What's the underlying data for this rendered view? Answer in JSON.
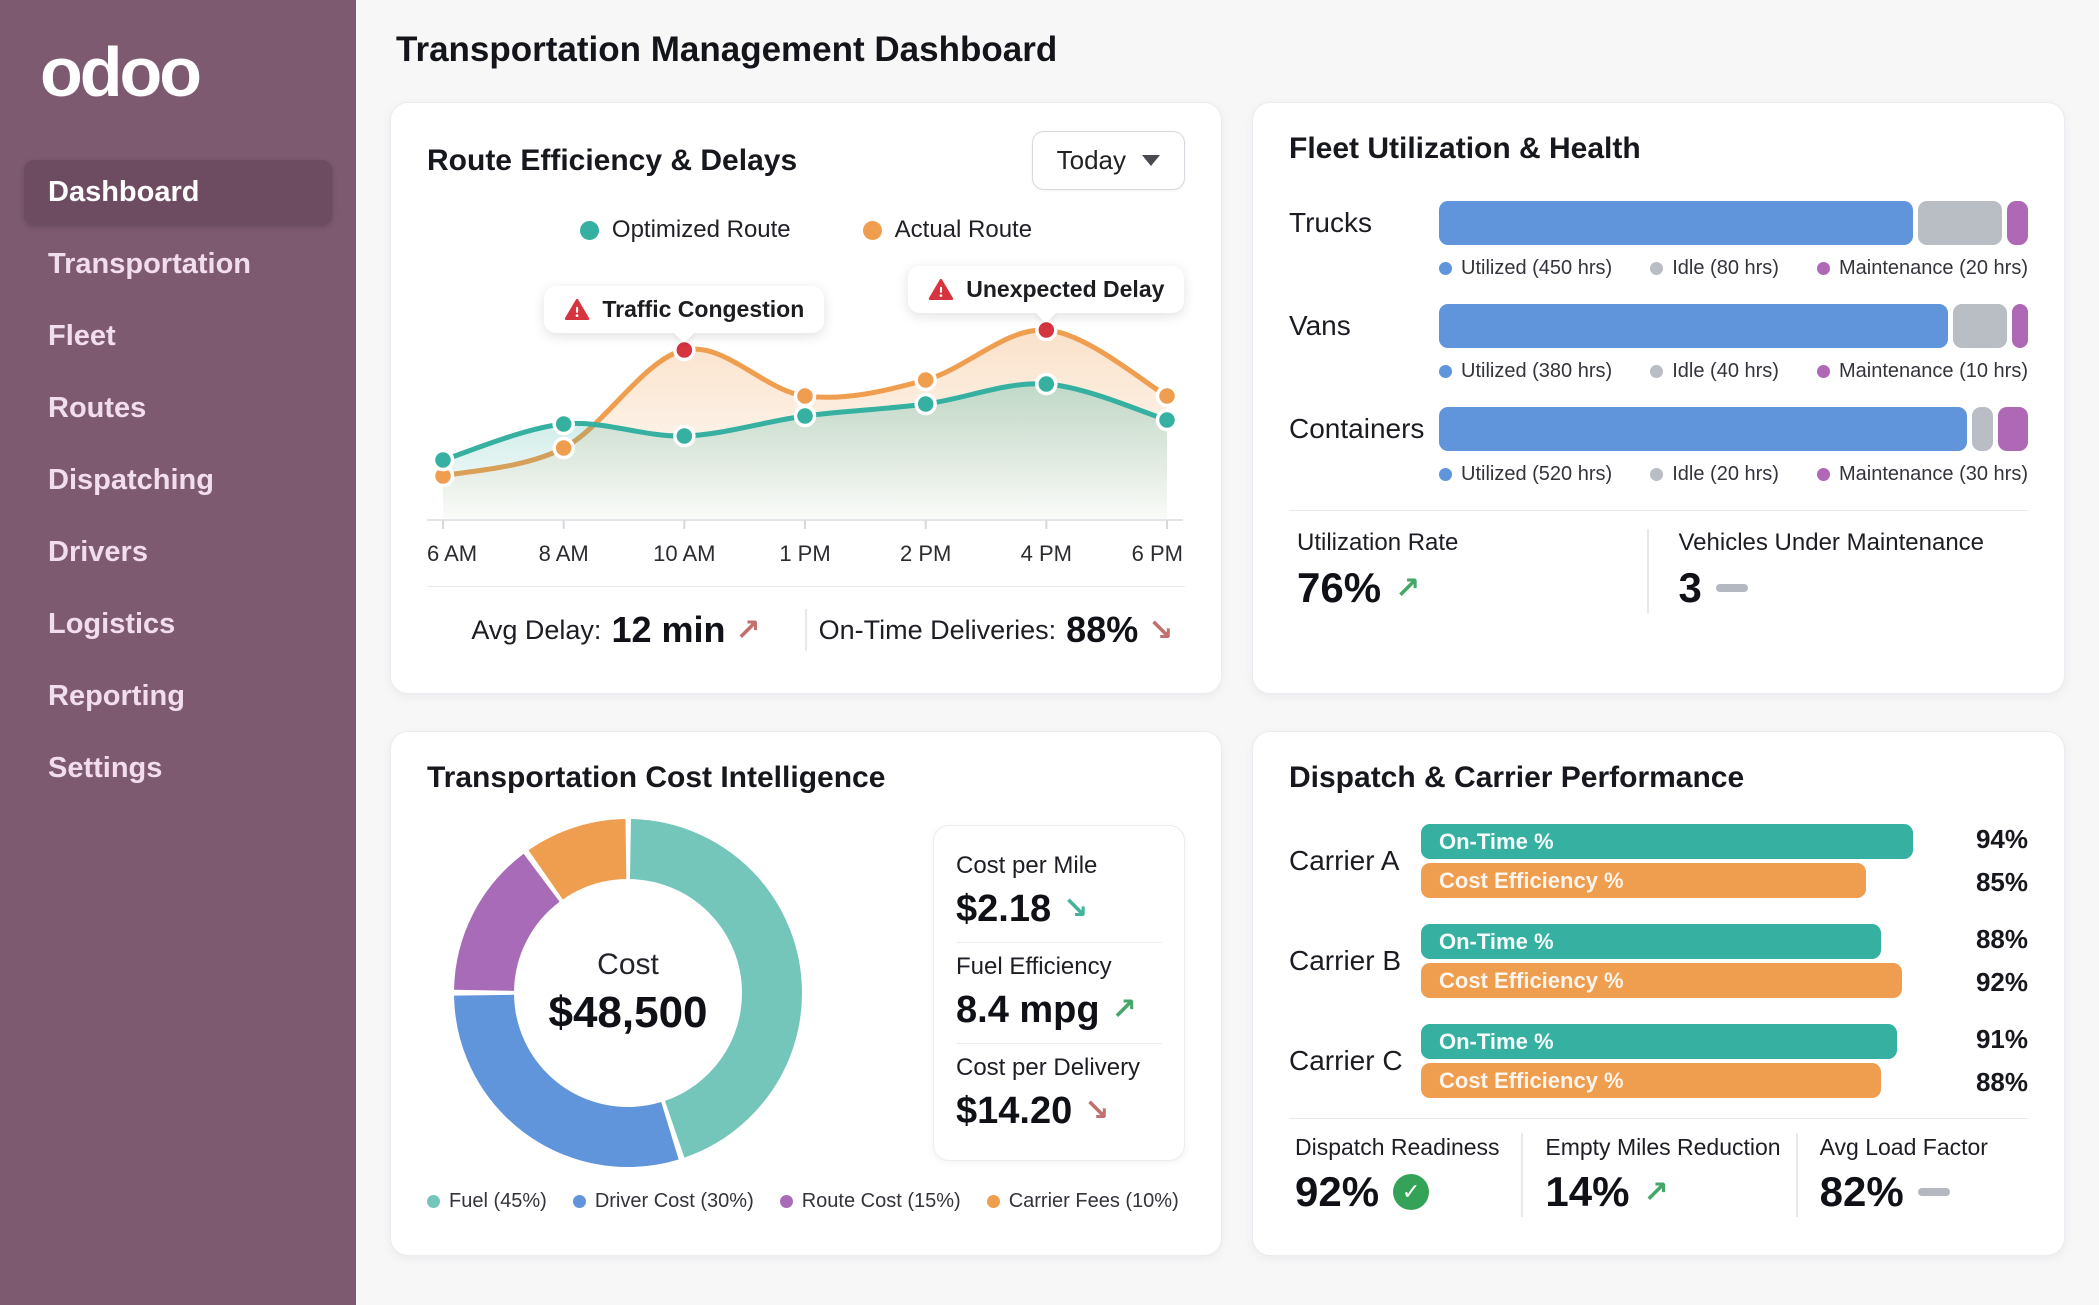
{
  "app": {
    "logo_text": "odoo"
  },
  "sidebar": {
    "items": [
      {
        "label": "Dashboard",
        "active": true
      },
      {
        "label": "Transportation",
        "active": false
      },
      {
        "label": "Fleet",
        "active": false
      },
      {
        "label": "Routes",
        "active": false
      },
      {
        "label": "Dispatching",
        "active": false
      },
      {
        "label": "Drivers",
        "active": false
      },
      {
        "label": "Logistics",
        "active": false
      },
      {
        "label": "Reporting",
        "active": false
      },
      {
        "label": "Settings",
        "active": false
      }
    ]
  },
  "header": {
    "title": "Transportation Management Dashboard"
  },
  "route_card": {
    "title": "Route Efficiency & Delays",
    "period_label": "Today",
    "footer": {
      "avg_delay_label": "Avg Delay:",
      "avg_delay_value": "12 min",
      "avg_delay_trend": "↗",
      "ontime_label": "On-Time Deliveries:",
      "ontime_value": "88%",
      "ontime_trend": "↘"
    }
  },
  "fleet_card": {
    "title": "Fleet Utilization & Health",
    "footer": {
      "left_label": "Utilization Rate",
      "left_value": "76%",
      "left_trend": "↗",
      "right_label": "Vehicles Under Maintenance",
      "right_value": "3"
    }
  },
  "cost_card": {
    "title": "Transportation Cost Intelligence",
    "stats": [
      {
        "label": "Cost per Mile",
        "value": "$2.18",
        "trend": "↘",
        "trend_color": "#45b39a"
      },
      {
        "label": "Fuel Efficiency",
        "value": "8.4 mpg",
        "trend": "↗",
        "trend_color": "#45a868"
      },
      {
        "label": "Cost per Delivery",
        "value": "$14.20",
        "trend": "↘",
        "trend_color": "#c2606c"
      }
    ]
  },
  "dispatch_card": {
    "title": "Dispatch & Carrier Performance",
    "footer": [
      {
        "label": "Dispatch Readiness",
        "value": "92%",
        "indicator": "check"
      },
      {
        "label": "Empty Miles Reduction",
        "value": "14%",
        "indicator": "up",
        "trend": "↗"
      },
      {
        "label": "Avg Load Factor",
        "value": "82%",
        "indicator": "flat"
      }
    ]
  },
  "colors": {
    "sidebar_bg": "#7e5a70",
    "sidebar_active": "#6d4b61",
    "teal": "#35b0a1",
    "orange": "#ef9d4f",
    "blue": "#6095dc",
    "idle_gray": "#b9bdc4",
    "purple": "#ae68b5",
    "alert_red": "#d63540",
    "positive_green": "#45a868",
    "negative_rose": "#c2706e"
  },
  "chart_data": [
    {
      "id": "route-efficiency",
      "type": "line",
      "x": [
        "6 AM",
        "8 AM",
        "10 AM",
        "1 PM",
        "2 PM",
        "4 PM",
        "6 PM"
      ],
      "series": [
        {
          "name": "Optimized Route",
          "color": "#35b0a1",
          "values": [
            30,
            48,
            42,
            52,
            58,
            68,
            50
          ]
        },
        {
          "name": "Actual Route",
          "color": "#ef9d4f",
          "values": [
            22,
            36,
            85,
            62,
            70,
            95,
            62
          ]
        }
      ],
      "annotations": [
        {
          "label": "Traffic Congestion",
          "series": "Actual Route",
          "index": 2
        },
        {
          "label": "Unexpected Delay",
          "series": "Actual Route",
          "index": 5
        }
      ],
      "ylim": [
        0,
        100
      ],
      "grid": false,
      "legend_position": "top"
    },
    {
      "id": "fleet-utilization",
      "type": "bar",
      "stacked": true,
      "unit": "hrs",
      "categories": [
        "Trucks",
        "Vans",
        "Containers"
      ],
      "series": [
        {
          "name": "Utilized",
          "color": "#6095dc",
          "values": [
            450,
            380,
            520
          ]
        },
        {
          "name": "Idle",
          "color": "#b9bdc4",
          "values": [
            80,
            40,
            20
          ]
        },
        {
          "name": "Maintenance",
          "color": "#ae68b5",
          "values": [
            20,
            10,
            30
          ]
        }
      ]
    },
    {
      "id": "cost-breakdown",
      "type": "pie",
      "labels": [
        "Fuel",
        "Driver Cost",
        "Route Cost",
        "Carrier Fees"
      ],
      "values": [
        45,
        30,
        15,
        10
      ],
      "colors": [
        "#74c6bb",
        "#6095dc",
        "#a86bb8",
        "#ef9d4f"
      ],
      "center_label": "Cost",
      "center_value": "$48,500"
    },
    {
      "id": "carrier-performance",
      "type": "bar",
      "categories": [
        "Carrier A",
        "Carrier B",
        "Carrier C"
      ],
      "series": [
        {
          "name": "On-Time %",
          "color": "#35b0a1",
          "values": [
            94,
            88,
            91
          ]
        },
        {
          "name": "Cost Efficiency %",
          "color": "#ef9d4f",
          "values": [
            85,
            92,
            88
          ]
        }
      ],
      "xlim": [
        0,
        100
      ]
    }
  ]
}
